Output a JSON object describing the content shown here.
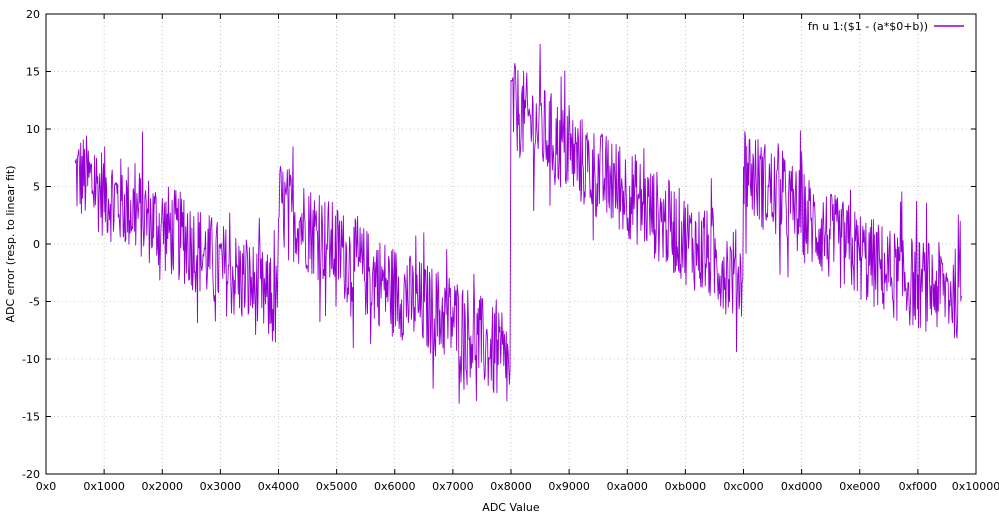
{
  "chart_data": {
    "type": "line",
    "title": "",
    "xlabel": "ADC Value",
    "ylabel": "ADC error (resp. to linear fit)",
    "xlim": [
      0,
      65536
    ],
    "ylim": [
      -20,
      20
    ],
    "x_ticks": [
      {
        "value": 0,
        "label": "0x0"
      },
      {
        "value": 4096,
        "label": "0x1000"
      },
      {
        "value": 8192,
        "label": "0x2000"
      },
      {
        "value": 12288,
        "label": "0x3000"
      },
      {
        "value": 16384,
        "label": "0x4000"
      },
      {
        "value": 20480,
        "label": "0x5000"
      },
      {
        "value": 24576,
        "label": "0x6000"
      },
      {
        "value": 28672,
        "label": "0x7000"
      },
      {
        "value": 32768,
        "label": "0x8000"
      },
      {
        "value": 36864,
        "label": "0x9000"
      },
      {
        "value": 40960,
        "label": "0xa000"
      },
      {
        "value": 45056,
        "label": "0xb000"
      },
      {
        "value": 49152,
        "label": "0xc000"
      },
      {
        "value": 53248,
        "label": "0xd000"
      },
      {
        "value": 57344,
        "label": "0xe000"
      },
      {
        "value": 61440,
        "label": "0xf000"
      },
      {
        "value": 65536,
        "label": "0x10000"
      }
    ],
    "y_ticks": [
      {
        "value": 20,
        "label": "20"
      },
      {
        "value": 15,
        "label": "15"
      },
      {
        "value": 10,
        "label": "10"
      },
      {
        "value": 5,
        "label": "5"
      },
      {
        "value": 0,
        "label": "0"
      },
      {
        "value": -5,
        "label": "-5"
      },
      {
        "value": -10,
        "label": "-10"
      },
      {
        "value": -15,
        "label": "-15"
      },
      {
        "value": -20,
        "label": "-20"
      }
    ],
    "grid": true,
    "legend_position": "top-right",
    "series": [
      {
        "name": "fn u 1:($1 - (a*$0+b))",
        "color": "#9400d3",
        "x": [
          2048,
          3072,
          4096,
          6144,
          8192,
          10240,
          12288,
          14336,
          16300,
          16384,
          17408,
          18432,
          20480,
          22528,
          24576,
          26624,
          28672,
          30720,
          32700,
          32768,
          33792,
          34816,
          36864,
          38912,
          40960,
          43008,
          45056,
          47104,
          49100,
          49152,
          50176,
          51200,
          53248,
          55296,
          57344,
          59392,
          61440,
          63488,
          64512
        ],
        "y": [
          6,
          5.5,
          4.5,
          3,
          1.5,
          0,
          -2,
          -3.5,
          -5.5,
          3.5,
          2.5,
          1.5,
          -0.5,
          -2.5,
          -4,
          -5.5,
          -6.5,
          -8.5,
          -11,
          12,
          11,
          10,
          8,
          6,
          4.5,
          2.5,
          0.5,
          -1.5,
          -3,
          7,
          5.5,
          4.5,
          2.5,
          0.5,
          -1,
          -2.5,
          -3.5,
          -4,
          -4.5
        ],
        "noise_amplitude": 4
      }
    ]
  }
}
